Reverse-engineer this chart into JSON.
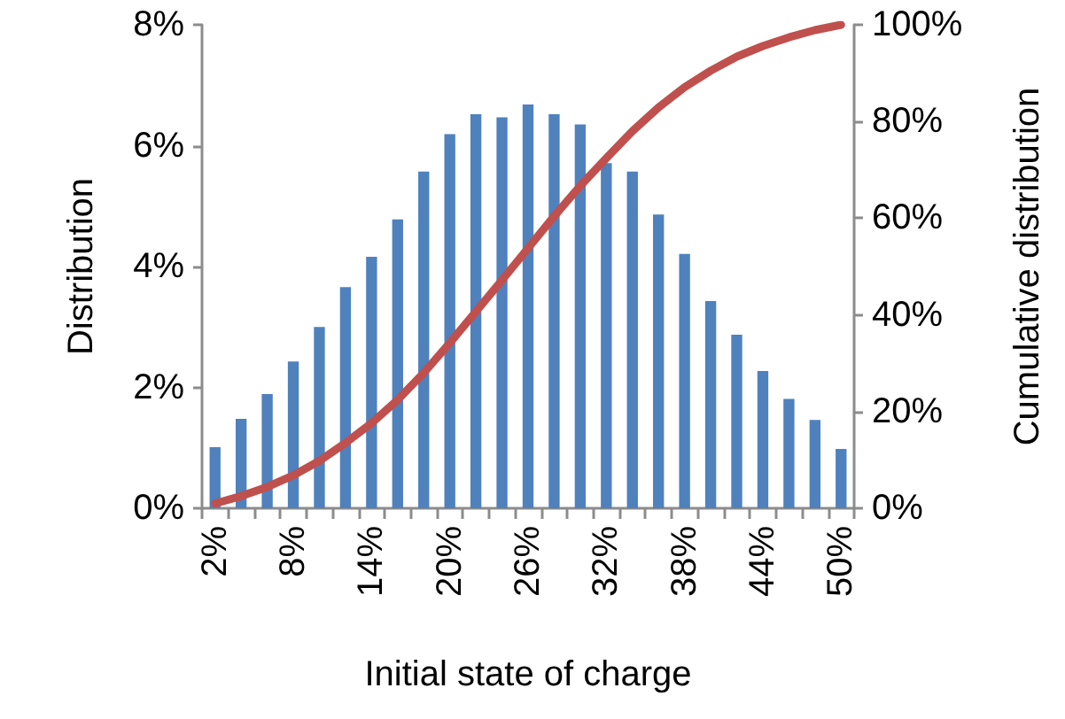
{
  "chart_data": {
    "type": "bar",
    "xlabel": "Initial state of charge",
    "ylabel": "Distribution",
    "y2label": "Cumulative distribution",
    "categories": [
      "2%",
      null,
      null,
      "8%",
      null,
      null,
      "14%",
      null,
      null,
      "20%",
      null,
      null,
      "26%",
      null,
      null,
      "32%",
      null,
      null,
      "38%",
      null,
      null,
      "44%",
      null,
      null,
      "50%"
    ],
    "series": [
      {
        "color": "#4f81bd",
        "values": [
          1.01,
          1.48,
          1.89,
          2.43,
          3.0,
          3.66,
          4.16,
          4.78,
          5.57,
          6.19,
          6.52,
          6.47,
          6.68,
          6.52,
          6.35,
          5.71,
          5.57,
          4.86,
          4.21,
          3.43,
          2.87,
          2.27,
          1.81,
          1.46,
          0.98
        ]
      },
      {
        "type": "line",
        "axis": "y2",
        "color": "#c0504d",
        "marker": "none",
        "line_style": "solid",
        "values": [
          1.0,
          2.5,
          4.4,
          6.8,
          9.8,
          13.5,
          17.6,
          22.4,
          28.0,
          34.2,
          40.7,
          47.2,
          53.8,
          60.4,
          66.7,
          72.4,
          78.0,
          82.9,
          87.1,
          90.5,
          93.4,
          95.6,
          97.4,
          98.9,
          100.0
        ]
      }
    ],
    "ylim": [
      0,
      8
    ],
    "yticks": [
      {
        "value": 0,
        "label": "0%"
      },
      {
        "value": 2,
        "label": "2%"
      },
      {
        "value": 4,
        "label": "4%"
      },
      {
        "value": 6,
        "label": "6%"
      },
      {
        "value": 8,
        "label": "8%"
      }
    ],
    "y2lim": [
      0,
      100
    ],
    "y2ticks": [
      {
        "value": 0,
        "label": "0%"
      },
      {
        "value": 20,
        "label": "20%"
      },
      {
        "value": 40,
        "label": "40%"
      },
      {
        "value": 60,
        "label": "60%"
      },
      {
        "value": 80,
        "label": "80%"
      },
      {
        "value": 100,
        "label": "100%"
      }
    ],
    "grid": false
  }
}
